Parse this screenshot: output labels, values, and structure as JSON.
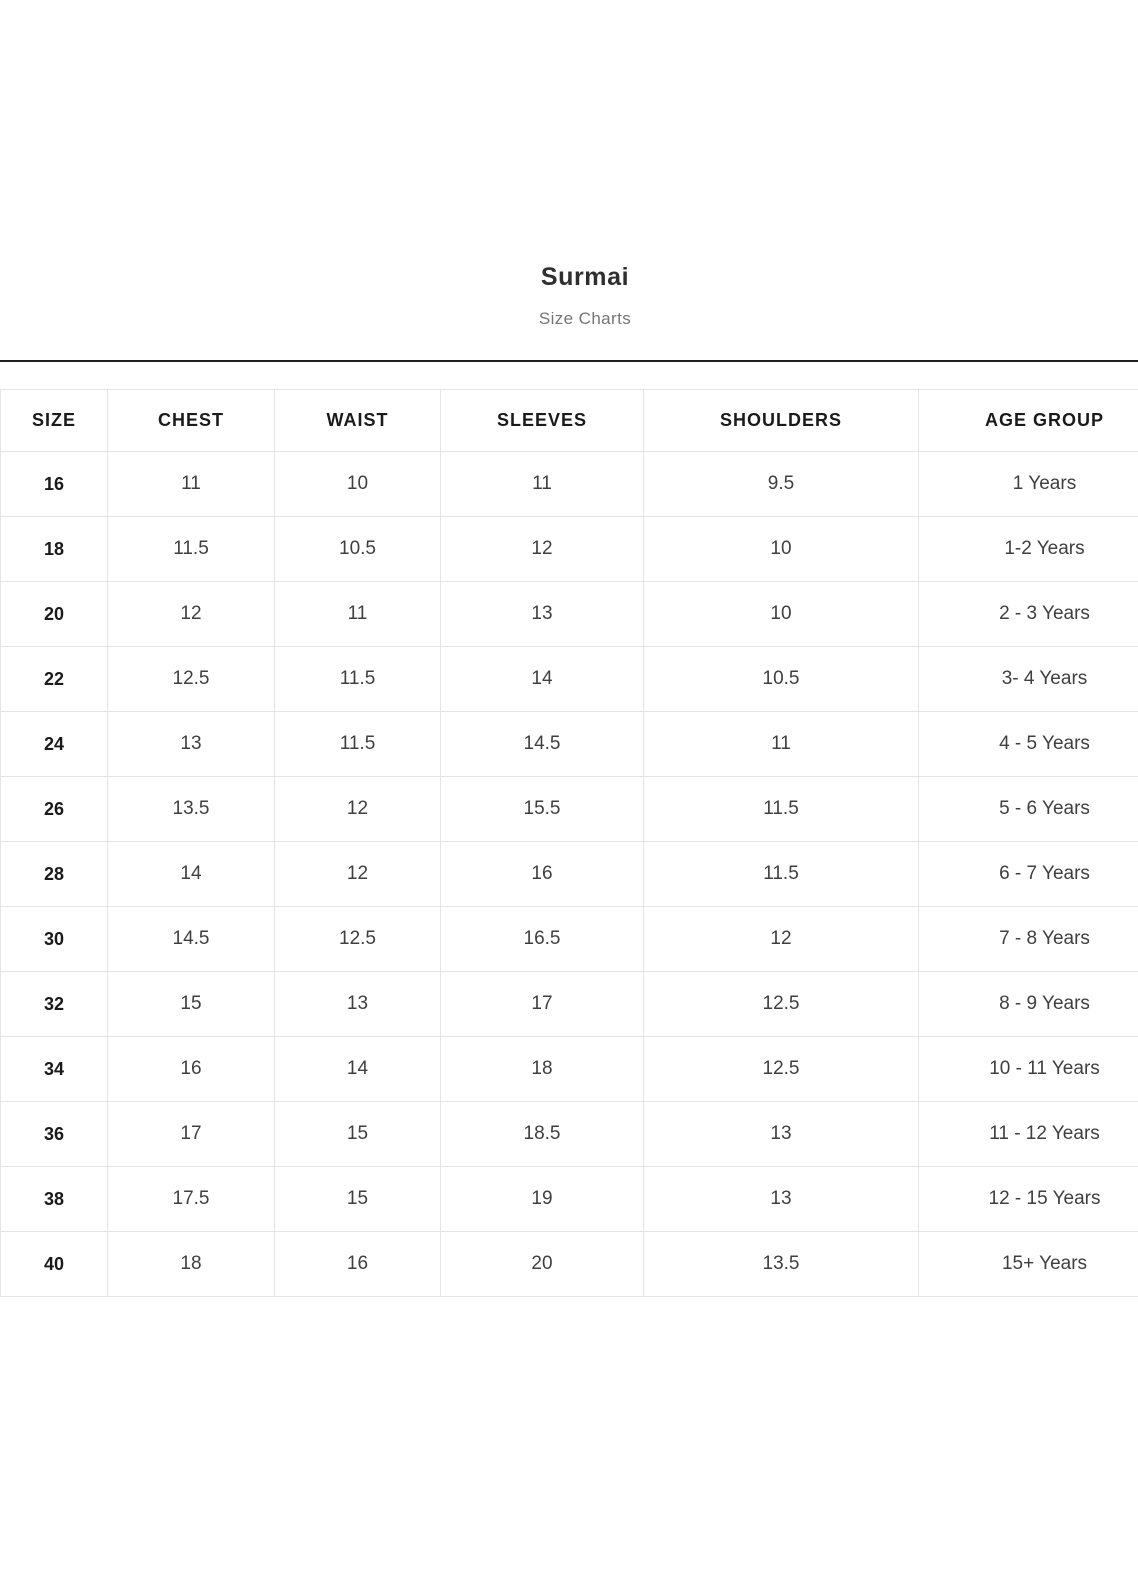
{
  "page": {
    "title": "Surmai",
    "subtitle": "Size Charts"
  },
  "colors": {
    "divider": "#1f1f1f",
    "cell_border": "#e4e4e4",
    "header_text": "#1a1a1a",
    "body_text": "#3f3f3f",
    "subtitle_text": "#757575"
  },
  "chart_data": {
    "type": "table",
    "title": "Surmai",
    "subtitle": "Size Charts",
    "headers": [
      "SIZE",
      "CHEST",
      "WAIST",
      "SLEEVES",
      "SHOULDERS",
      "AGE GROUP"
    ],
    "rows": [
      [
        "16",
        "11",
        "10",
        "11",
        "9.5",
        "1 Years"
      ],
      [
        "18",
        "11.5",
        "10.5",
        "12",
        "10",
        "1-2 Years"
      ],
      [
        "20",
        "12",
        "11",
        "13",
        "10",
        "2 - 3 Years"
      ],
      [
        "22",
        "12.5",
        "11.5",
        "14",
        "10.5",
        "3- 4 Years"
      ],
      [
        "24",
        "13",
        "11.5",
        "14.5",
        "11",
        "4 - 5 Years"
      ],
      [
        "26",
        "13.5",
        "12",
        "15.5",
        "11.5",
        "5 - 6 Years"
      ],
      [
        "28",
        "14",
        "12",
        "16",
        "11.5",
        "6 - 7 Years"
      ],
      [
        "30",
        "14.5",
        "12.5",
        "16.5",
        "12",
        "7 - 8 Years"
      ],
      [
        "32",
        "15",
        "13",
        "17",
        "12.5",
        "8 - 9 Years"
      ],
      [
        "34",
        "16",
        "14",
        "18",
        "12.5",
        "10 - 11 Years"
      ],
      [
        "36",
        "17",
        "15",
        "18.5",
        "13",
        "11 - 12 Years"
      ],
      [
        "38",
        "17.5",
        "15",
        "19",
        "13",
        "12 - 15 Years"
      ],
      [
        "40",
        "18",
        "16",
        "20",
        "13.5",
        "15+ Years"
      ]
    ]
  }
}
